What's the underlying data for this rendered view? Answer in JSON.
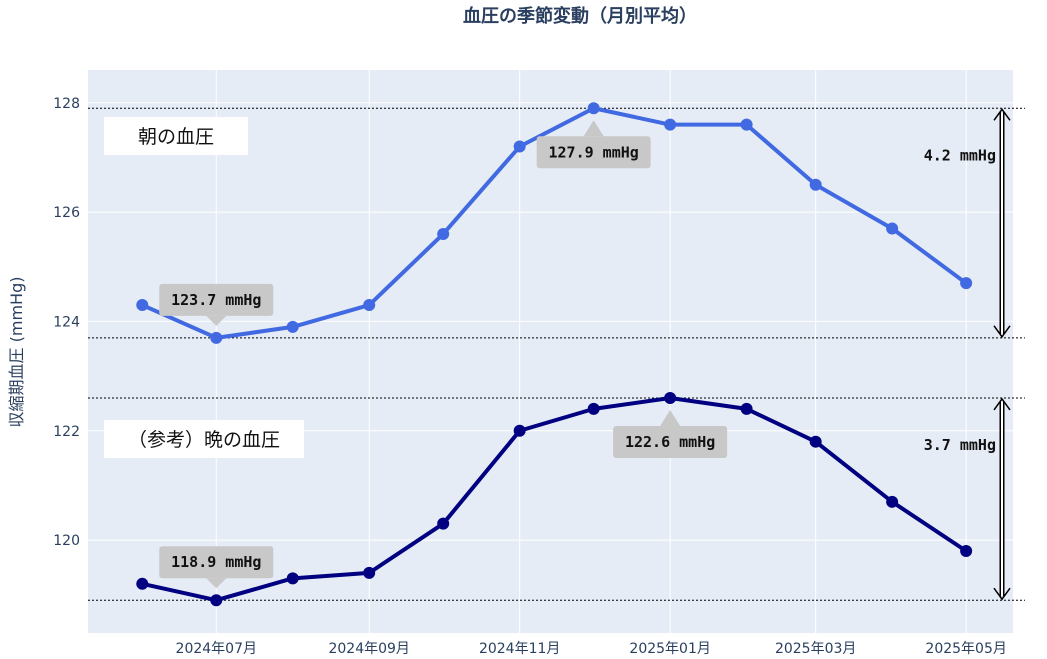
{
  "chart_data": {
    "type": "line",
    "title": "血圧の季節変動（月別平均）",
    "ylabel": "収縮期血圧 (mmHg)",
    "ylim": [
      118.3,
      128.6
    ],
    "yticks": [
      "120",
      "122",
      "124",
      "126",
      "128"
    ],
    "xlim": [
      "2024-05-10",
      "2025-05-20"
    ],
    "xticks": [
      "2024年07月",
      "2024年09月",
      "2024年11月",
      "2025年01月",
      "2025年03月",
      "2025年05月"
    ],
    "x": [
      "2024-06-01",
      "2024-07-01",
      "2024-08-01",
      "2024-09-01",
      "2024-10-01",
      "2024-11-01",
      "2024-12-01",
      "2025-01-01",
      "2025-02-01",
      "2025-03-01",
      "2025-04-01",
      "2025-05-01"
    ],
    "series": [
      {
        "name": "朝の血圧",
        "color": "#4169e1",
        "values": [
          124.3,
          123.7,
          123.9,
          124.3,
          125.6,
          127.2,
          127.9,
          127.6,
          127.6,
          126.5,
          125.7,
          124.7
        ],
        "max_label": "127.9 mmHg",
        "min_label": "123.7 mmHg",
        "range_label": "4.2 mmHg"
      },
      {
        "name": "（参考）晩の血圧",
        "color": "#000080",
        "values": [
          119.2,
          118.9,
          119.3,
          119.4,
          120.3,
          122.0,
          122.4,
          122.6,
          122.4,
          121.8,
          120.7,
          119.8
        ],
        "max_label": "122.6 mmHg",
        "min_label": "118.9 mmHg",
        "range_label": "3.7 mmHg"
      }
    ],
    "grid": true
  }
}
